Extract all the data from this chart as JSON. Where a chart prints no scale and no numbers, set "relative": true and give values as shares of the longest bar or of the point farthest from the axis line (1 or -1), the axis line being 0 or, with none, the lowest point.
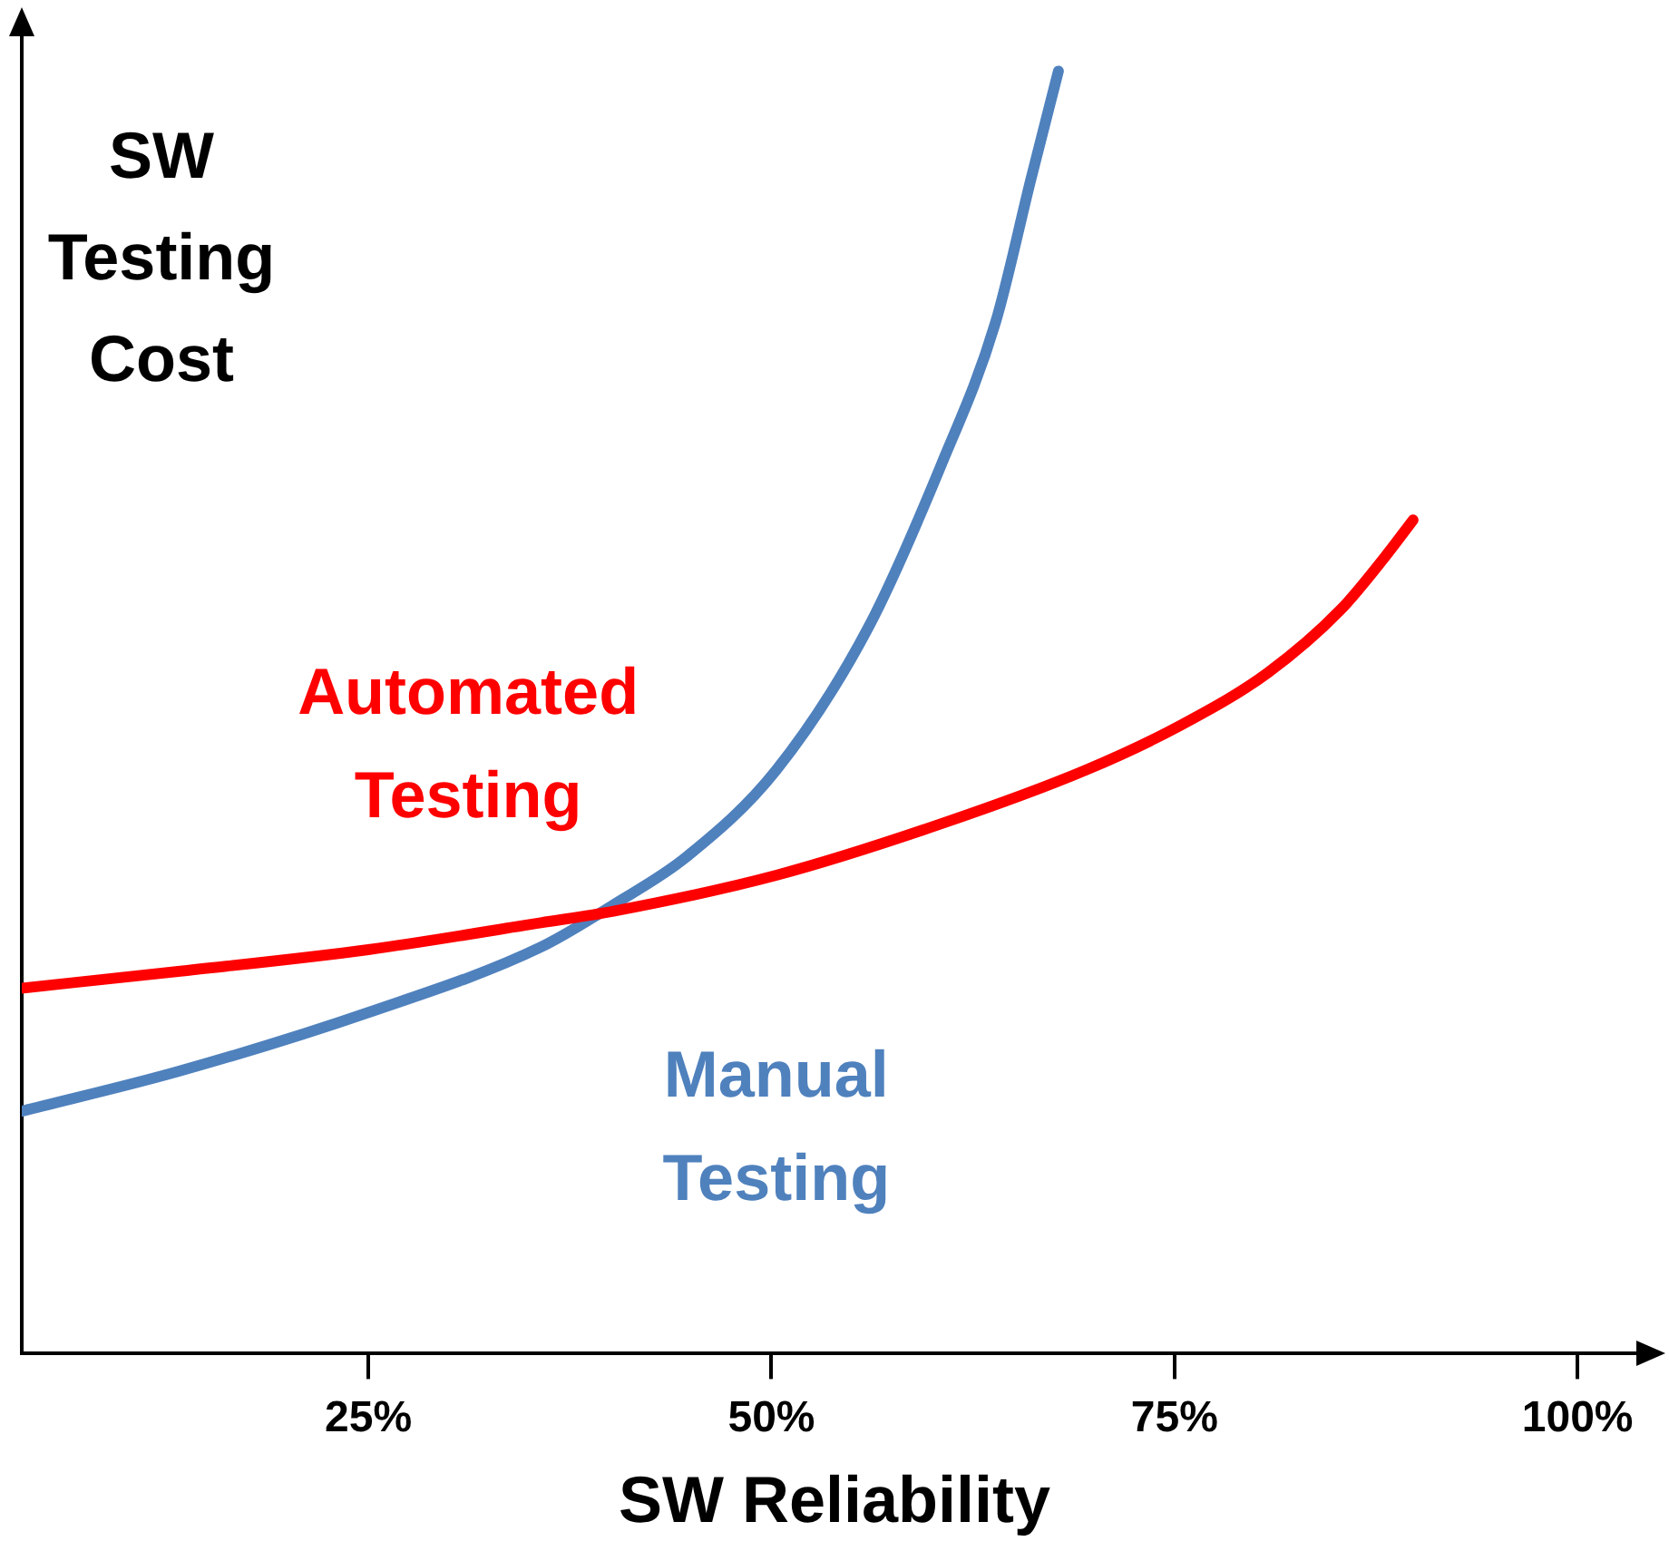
{
  "chart_data": {
    "type": "line",
    "relative": true,
    "xlabel": "SW Reliability",
    "ylabel": "SW Testing Cost",
    "xlim": [
      3.5,
      105
    ],
    "xticks": [
      {
        "value": 25,
        "label": "25%"
      },
      {
        "value": 50,
        "label": "50%"
      },
      {
        "value": 75,
        "label": "75%"
      },
      {
        "value": 100,
        "label": "100%"
      }
    ],
    "tick_labels": "x",
    "grid": false,
    "legend": false,
    "marker": "none",
    "line_style": "solid",
    "series": [
      {
        "name": "Automated Testing",
        "color": "#ff0000",
        "x": [
          3.5,
          13.2,
          25,
          35.7,
          40.2,
          50.3,
          60.5,
          69.5,
          75.4,
          80.8,
          85.3,
          88.1,
          89.8
        ],
        "values": [
          0.285,
          0.298,
          0.315,
          0.336,
          0.345,
          0.373,
          0.413,
          0.455,
          0.49,
          0.531,
          0.58,
          0.622,
          0.65
        ]
      },
      {
        "name": "Manual Testing",
        "color": "#4f81bd",
        "x": [
          3.5,
          13.2,
          25,
          35.7,
          40.2,
          44.7,
          50.3,
          56,
          60.5,
          63.9,
          66.1,
          67.8
        ],
        "values": [
          0.189,
          0.22,
          0.266,
          0.317,
          0.35,
          0.387,
          0.455,
          0.566,
          0.692,
          0.804,
          0.916,
          1
        ]
      }
    ]
  }
}
